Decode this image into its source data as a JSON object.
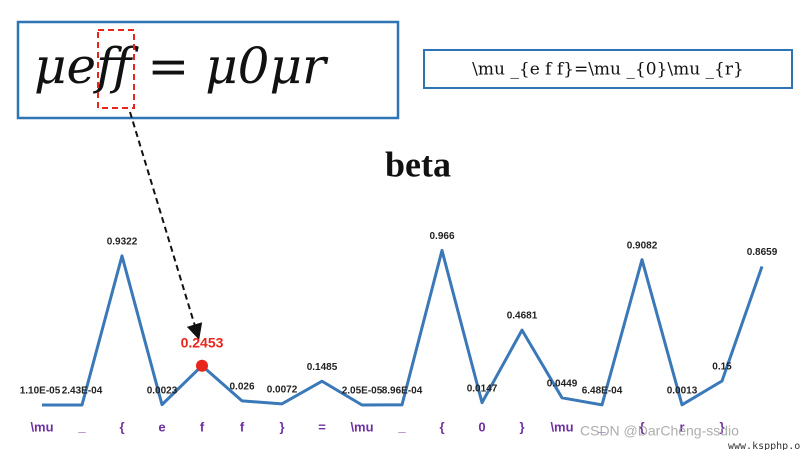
{
  "handwritten_formula": "μeff = μ0μr",
  "latex_formula": "\\mu _{e f f}=\\mu _{0}\\mu _{r}",
  "watermark": [
    "CSDN @DarCheng-ssdio",
    "www.kspphp.online"
  ],
  "chart_data": {
    "type": "line",
    "title": "beta",
    "categories": [
      "\\mu",
      "_",
      "{",
      "e",
      "f",
      "f",
      "}",
      "=",
      "\\mu",
      "_",
      "{",
      "0",
      "}",
      "\\mu",
      "_",
      "{",
      "r",
      "}",
      null
    ],
    "values": [
      1.1e-05,
      0.000243,
      0.9322,
      0.0023,
      0.2453,
      0.026,
      0.0072,
      0.1485,
      2.05e-05,
      0.000896,
      0.966,
      0.0147,
      0.4681,
      0.0449,
      0.000648,
      0.9082,
      0.0013,
      0.15,
      0.8659
    ],
    "value_labels": [
      "1.10E-05",
      "2.43E-04",
      "0.9322",
      "0.0023",
      "0.2453",
      "0.026",
      "0.0072",
      "0.1485",
      "2.05E-05",
      "8.96E-04",
      "0.966",
      "0.0147",
      "0.4681",
      "0.0449",
      "6.48E-04",
      "0.9082",
      "0.0013",
      "0.15",
      "0.8659"
    ],
    "color": "#3a78b8",
    "highlight_index": 4,
    "highlight_color": "#e8251c",
    "category_color": "#7030a0"
  }
}
